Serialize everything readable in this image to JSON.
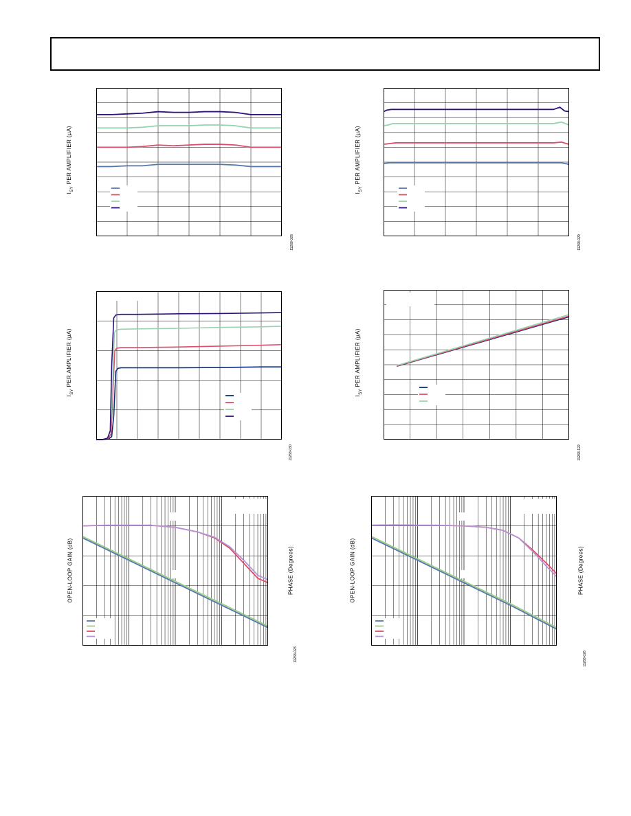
{
  "figure_codes": [
    "11268-028",
    "11268-029",
    "11268-030",
    "11268-122",
    "11268-023",
    "11268-026"
  ],
  "ylabels": {
    "isy": [
      "I",
      "SY",
      " PER AMPLIFIER (µA)"
    ],
    "gain": "OPEN-LOOP GAIN (dB)",
    "phase": "PHASE (Degrees)"
  },
  "colors": {
    "blue": "#5577aa",
    "navy": "#0c2c7a",
    "red": "#dd4c68",
    "green": "#98d3b0",
    "purple": "#2e1178",
    "lavender": "#b794d6",
    "lightgreen": "#99cc88"
  },
  "chart_data": [
    {
      "type": "line",
      "grid": true,
      "ylim": [
        0,
        10
      ],
      "xlim": [
        0,
        6
      ],
      "legend_placement": "lower-left",
      "series": [
        {
          "color": "#2e1178",
          "x": [
            0,
            0.5,
            1,
            1.5,
            2,
            2.5,
            3,
            3.5,
            4,
            4.5,
            5,
            5.5,
            6
          ],
          "values": [
            8.2,
            8.2,
            8.25,
            8.3,
            8.4,
            8.35,
            8.35,
            8.4,
            8.4,
            8.35,
            8.2,
            8.2,
            8.2
          ]
        },
        {
          "color": "#98d3b0",
          "x": [
            0,
            0.5,
            1,
            1.5,
            2,
            2.5,
            3,
            3.5,
            4,
            4.5,
            5,
            5.5,
            6
          ],
          "values": [
            7.3,
            7.3,
            7.3,
            7.35,
            7.45,
            7.45,
            7.45,
            7.5,
            7.5,
            7.45,
            7.3,
            7.3,
            7.3
          ]
        },
        {
          "color": "#dd4c68",
          "x": [
            0,
            0.5,
            1,
            1.5,
            2,
            2.5,
            3,
            3.5,
            4,
            4.5,
            5,
            5.5,
            6
          ],
          "values": [
            6.0,
            6.0,
            6.0,
            6.05,
            6.15,
            6.1,
            6.15,
            6.2,
            6.2,
            6.15,
            6.0,
            6.0,
            6.0
          ]
        },
        {
          "color": "#5577aa",
          "x": [
            0,
            0.5,
            1,
            1.5,
            2,
            2.5,
            3,
            3.5,
            4,
            4.5,
            5,
            5.5,
            6
          ],
          "values": [
            4.7,
            4.7,
            4.75,
            4.75,
            4.85,
            4.85,
            4.85,
            4.85,
            4.85,
            4.8,
            4.7,
            4.7,
            4.7
          ]
        }
      ]
    },
    {
      "type": "line",
      "grid": true,
      "ylim": [
        0,
        10
      ],
      "xlim": [
        0,
        6
      ],
      "legend_placement": "lower-left",
      "series": [
        {
          "color": "#2e1178",
          "x": [
            0,
            0.1,
            0.25,
            0.5,
            1,
            2,
            3,
            4,
            5,
            5.5,
            5.7,
            5.85,
            6
          ],
          "values": [
            8.4,
            8.5,
            8.55,
            8.55,
            8.55,
            8.55,
            8.55,
            8.55,
            8.55,
            8.55,
            8.7,
            8.45,
            8.4
          ]
        },
        {
          "color": "#98d3b0",
          "x": [
            0,
            0.15,
            0.3,
            1,
            2,
            3,
            4,
            5,
            5.5,
            5.75,
            6
          ],
          "values": [
            7.45,
            7.5,
            7.6,
            7.6,
            7.6,
            7.6,
            7.6,
            7.6,
            7.6,
            7.7,
            7.5
          ]
        },
        {
          "color": "#dd4c68",
          "x": [
            0,
            0.2,
            0.4,
            1,
            2,
            3,
            4,
            5,
            5.5,
            5.75,
            6
          ],
          "values": [
            6.2,
            6.25,
            6.3,
            6.3,
            6.3,
            6.3,
            6.3,
            6.3,
            6.3,
            6.35,
            6.2
          ]
        },
        {
          "color": "#5577aa",
          "x": [
            0,
            0.2,
            0.4,
            1,
            2,
            3,
            4,
            5,
            5.5,
            5.75,
            6
          ],
          "values": [
            4.9,
            4.95,
            4.95,
            4.95,
            4.95,
            4.95,
            4.95,
            4.95,
            4.95,
            4.95,
            4.85
          ]
        }
      ]
    },
    {
      "type": "line",
      "grid": true,
      "ylim": [
        0,
        5
      ],
      "xlim": [
        0,
        9
      ],
      "legend_placement": "lower-right",
      "series": [
        {
          "color": "#0c2c7a",
          "x": [
            0,
            0.3,
            0.6,
            0.75,
            0.85,
            0.95,
            1.05,
            1.2,
            2,
            4,
            6,
            8,
            9
          ],
          "values": [
            0,
            0,
            0.02,
            0.1,
            0.8,
            2.3,
            2.4,
            2.42,
            2.42,
            2.42,
            2.43,
            2.45,
            2.45
          ]
        },
        {
          "color": "#dd4c68",
          "x": [
            0,
            0.3,
            0.6,
            0.72,
            0.8,
            0.9,
            1.0,
            1.2,
            2,
            4,
            6,
            8,
            9
          ],
          "values": [
            0,
            0,
            0.05,
            0.2,
            1.5,
            3.0,
            3.08,
            3.1,
            3.1,
            3.12,
            3.15,
            3.18,
            3.2
          ]
        },
        {
          "color": "#98d3b0",
          "x": [
            0,
            0.3,
            0.55,
            0.7,
            0.8,
            0.88,
            0.98,
            1.2,
            2,
            4,
            6,
            8,
            9
          ],
          "values": [
            0,
            0,
            0.05,
            0.3,
            2.0,
            3.6,
            3.7,
            3.72,
            3.73,
            3.75,
            3.78,
            3.8,
            3.82
          ]
        },
        {
          "color": "#2e1178",
          "x": [
            0,
            0.3,
            0.55,
            0.68,
            0.75,
            0.85,
            0.95,
            1.2,
            2,
            4,
            6,
            8,
            9
          ],
          "values": [
            0,
            0,
            0.05,
            0.3,
            2.5,
            4.1,
            4.2,
            4.22,
            4.22,
            4.24,
            4.25,
            4.27,
            4.28
          ]
        }
      ]
    },
    {
      "type": "line",
      "grid": true,
      "ylim": [
        0,
        10
      ],
      "xlim": [
        0,
        7
      ],
      "legend_placement": "lower-left",
      "series": [
        {
          "color": "#0c2c7a",
          "x": [
            0.5,
            7
          ],
          "values": [
            4.9,
            8.2
          ]
        },
        {
          "color": "#dd4c68",
          "x": [
            0.5,
            7
          ],
          "values": [
            4.92,
            8.25
          ]
        },
        {
          "color": "#98d3b0",
          "x": [
            0.5,
            7
          ],
          "values": [
            4.95,
            8.35
          ]
        }
      ]
    },
    {
      "type": "line",
      "grid": true,
      "x_scale": "log",
      "xlim": [
        1,
        10000
      ],
      "ylim": [
        0,
        5
      ],
      "legend_placement": "lower-left",
      "series": [
        {
          "color": "#5577aa",
          "x": [
            1,
            10,
            100,
            1000,
            10000
          ],
          "values": [
            3.6,
            2.85,
            2.1,
            1.35,
            0.6
          ]
        },
        {
          "color": "#99cc88",
          "x": [
            1,
            10,
            100,
            1000,
            10000
          ],
          "values": [
            3.65,
            2.9,
            2.15,
            1.4,
            0.65
          ]
        },
        {
          "color": "#dd4c68",
          "x": [
            1,
            3,
            10,
            30,
            100,
            300,
            700,
            1500,
            3000,
            6000,
            10000
          ],
          "values": [
            4.0,
            4.02,
            4.02,
            4.02,
            3.95,
            3.8,
            3.6,
            3.25,
            2.75,
            2.25,
            2.1
          ]
        },
        {
          "color": "#b794d6",
          "x": [
            1,
            3,
            10,
            30,
            100,
            300,
            700,
            1500,
            3000,
            6000,
            10000
          ],
          "values": [
            4.0,
            4.02,
            4.02,
            4.02,
            3.95,
            3.8,
            3.62,
            3.3,
            2.85,
            2.35,
            2.2
          ]
        }
      ]
    },
    {
      "type": "line",
      "grid": true,
      "x_scale": "log",
      "xlim": [
        1,
        10000
      ],
      "ylim": [
        0,
        5
      ],
      "legend_placement": "lower-left",
      "series": [
        {
          "color": "#5577aa",
          "x": [
            1,
            10,
            100,
            1000,
            10000
          ],
          "values": [
            3.6,
            2.85,
            2.1,
            1.35,
            0.55
          ]
        },
        {
          "color": "#99cc88",
          "x": [
            1,
            10,
            100,
            1000,
            10000
          ],
          "values": [
            3.65,
            2.9,
            2.15,
            1.4,
            0.6
          ]
        },
        {
          "color": "#dd4c68",
          "x": [
            1,
            3,
            10,
            30,
            100,
            300,
            700,
            1500,
            3000,
            6000,
            10000
          ],
          "values": [
            4.02,
            4.03,
            4.02,
            4.02,
            4.0,
            3.95,
            3.85,
            3.6,
            3.2,
            2.75,
            2.4
          ]
        },
        {
          "color": "#b794d6",
          "x": [
            1,
            3,
            10,
            30,
            100,
            300,
            700,
            1500,
            3000,
            6000,
            10000
          ],
          "values": [
            4.02,
            4.03,
            4.02,
            4.02,
            4.0,
            3.95,
            3.85,
            3.6,
            3.15,
            2.65,
            2.3
          ]
        }
      ]
    }
  ]
}
